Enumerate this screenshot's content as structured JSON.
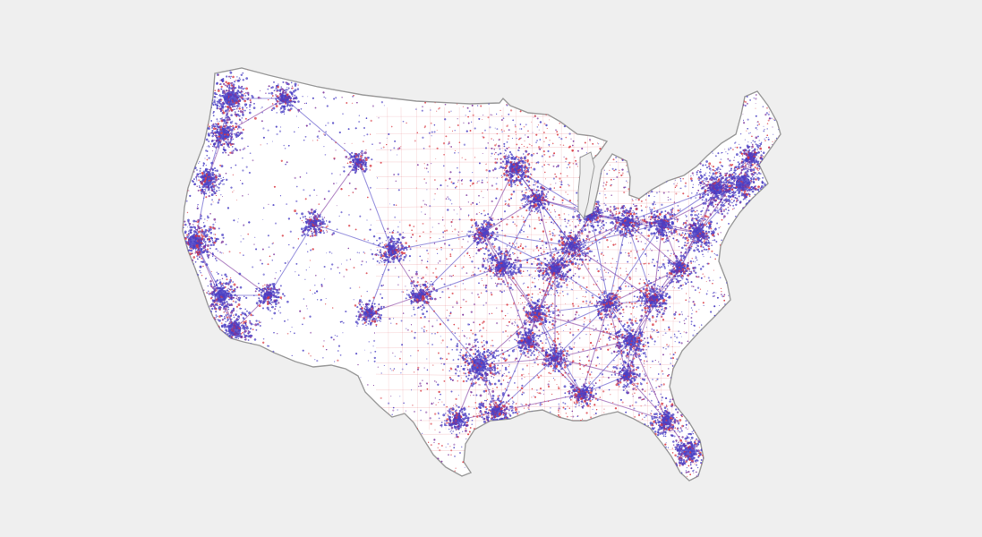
{
  "map": {
    "background_color": "#efefef",
    "land_color": "#ffffff",
    "outline_color": "#9a9a9a",
    "series_colors": {
      "blue": "#4a3fc4",
      "purple": "#7a2f9a",
      "red": "#d93a43"
    },
    "regions": [
      "contiguous-united-states"
    ],
    "labels": []
  }
}
